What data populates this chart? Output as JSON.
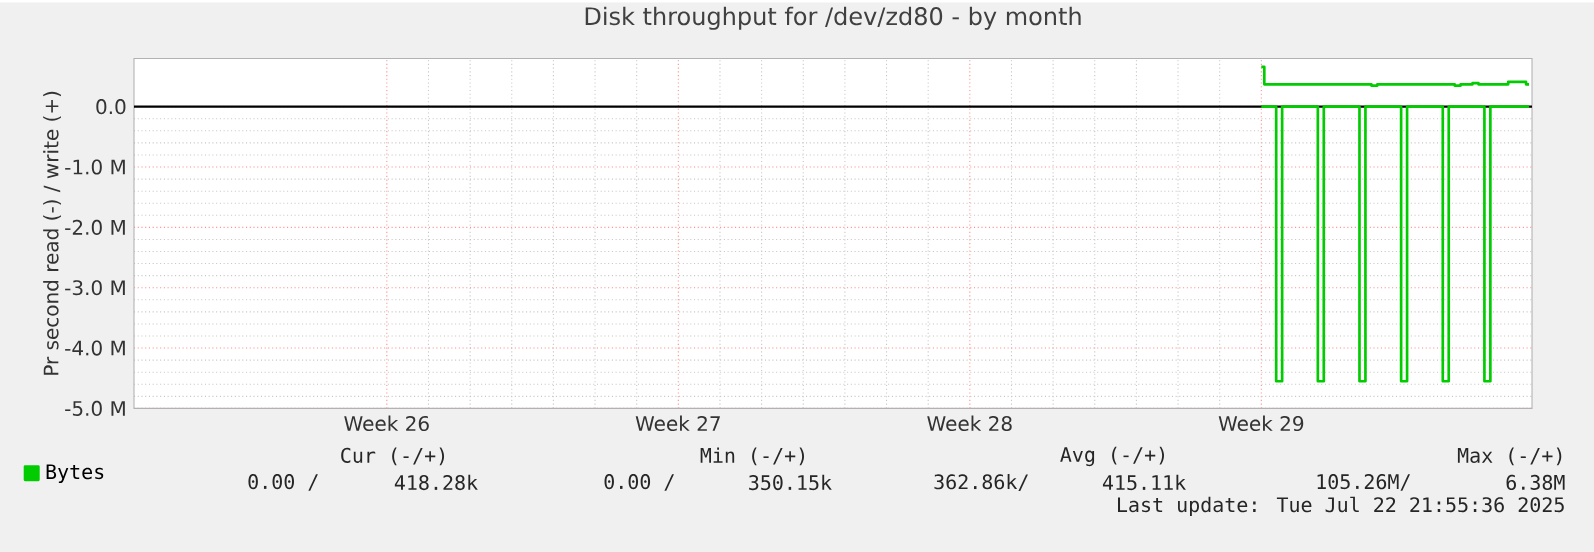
{
  "chart_data": {
    "type": "step",
    "title": "Disk throughput for /dev/zd80 - by month",
    "ylabel": "Pr second read (-) / write (+)",
    "categories": [
      null,
      null,
      null,
      null,
      null,
      null,
      null,
      null,
      null,
      null,
      null,
      null,
      null,
      null,
      null,
      null,
      null,
      null,
      null,
      null,
      null,
      null,
      null,
      null,
      null,
      null,
      null,
      null,
      null,
      null,
      null,
      null,
      null,
      null,
      null,
      null,
      null,
      null,
      null,
      null,
      null,
      null,
      "Week 26",
      null,
      null,
      null,
      null,
      null,
      null,
      null,
      null,
      null,
      null,
      null,
      null,
      null,
      null,
      null,
      null,
      null,
      null,
      null,
      null,
      null,
      null,
      null,
      null,
      null,
      null,
      null,
      null,
      null,
      null,
      null,
      null,
      null,
      null,
      null,
      null,
      null,
      null,
      null,
      null,
      null,
      null,
      null,
      null,
      null,
      null,
      null,
      null,
      "Week 27",
      null,
      null,
      null,
      null,
      null,
      null,
      null,
      null,
      null,
      null,
      null,
      null,
      null,
      null,
      null,
      null,
      null,
      null,
      null,
      null,
      null,
      null,
      null,
      null,
      null,
      null,
      null,
      null,
      null,
      null,
      null,
      null,
      null,
      null,
      null,
      null,
      null,
      null,
      null,
      null,
      null,
      null,
      null,
      null,
      null,
      null,
      null,
      null,
      "Week 28",
      null,
      null,
      null,
      null,
      null,
      null,
      null,
      null,
      null,
      null,
      null,
      null,
      null,
      null,
      null,
      null,
      null,
      null,
      null,
      null,
      null,
      null,
      null,
      null,
      null,
      null,
      null,
      null,
      null,
      null,
      null,
      null,
      null,
      null,
      null,
      null,
      null,
      null,
      null,
      null,
      null,
      null,
      null,
      null,
      null,
      null,
      null,
      null,
      "Week 29",
      null,
      null,
      null,
      null,
      null,
      null,
      null,
      null,
      null,
      null,
      null,
      null,
      null,
      null,
      null,
      null,
      null,
      null,
      null,
      null,
      null,
      null,
      null,
      null,
      null,
      null,
      null,
      null,
      null,
      null,
      null,
      null,
      null,
      null,
      null,
      null,
      null,
      null,
      null,
      null,
      null,
      null,
      null,
      null,
      null
    ],
    "ylim": [
      -5,
      0.8
    ],
    "yticks": [
      {
        "value": -5,
        "label": "-5.0 M"
      },
      {
        "value": -4,
        "label": "-4.0 M"
      },
      {
        "value": -3,
        "label": "-3.0 M"
      },
      {
        "value": -2,
        "label": "-2.0 M"
      },
      {
        "value": -1,
        "label": "-1.0 M"
      },
      {
        "value": 0,
        "label": "0.0"
      }
    ],
    "grid": true,
    "legend": "bottom left",
    "series": [
      {
        "name": "Bytes",
        "color": "#00cc00",
        "values": [
          null,
          null,
          null,
          null,
          null,
          null,
          null,
          null,
          null,
          null,
          null,
          null,
          null,
          null,
          null,
          null,
          null,
          null,
          null,
          null,
          null,
          null,
          null,
          null,
          null,
          null,
          null,
          null,
          null,
          null,
          null,
          null,
          null,
          null,
          null,
          null,
          null,
          null,
          null,
          null,
          null,
          null,
          null,
          null,
          null,
          null,
          null,
          null,
          null,
          null,
          null,
          null,
          null,
          null,
          null,
          null,
          null,
          null,
          null,
          null,
          null,
          null,
          null,
          null,
          null,
          null,
          null,
          null,
          null,
          null,
          null,
          null,
          null,
          null,
          null,
          null,
          null,
          null,
          null,
          null,
          null,
          null,
          null,
          null,
          null,
          null,
          null,
          null,
          null,
          null,
          null,
          null,
          null,
          null,
          null,
          null,
          null,
          null,
          null,
          null,
          null,
          null,
          null,
          null,
          null,
          null,
          null,
          null,
          null,
          null,
          null,
          null,
          null,
          null,
          null,
          null,
          null,
          null,
          null,
          null,
          null,
          null,
          null,
          null,
          null,
          null,
          null,
          null,
          null,
          null,
          null,
          null,
          null,
          null,
          null,
          null,
          null,
          null,
          null,
          null,
          null,
          null,
          null,
          null,
          null,
          null,
          null,
          null,
          null,
          null,
          null,
          null,
          null,
          null,
          null,
          null,
          null,
          null,
          null,
          null,
          null,
          null,
          null,
          null,
          null,
          null,
          null,
          null,
          null,
          null,
          null,
          null,
          null,
          null,
          null,
          null,
          null,
          null,
          null,
          null,
          null,
          null,
          null,
          null,
          null,
          null,
          null,
          null,
          null,
          0.66,
          0.37,
          0.37,
          0.37,
          0.37,
          0.37,
          0.37,
          0.37,
          0.37,
          0.37,
          0.37,
          0.37,
          0.37,
          0.37,
          0.37,
          0.37,
          0.37,
          0.37,
          0.37,
          0.35,
          0.37,
          0.37,
          0.37,
          0.37,
          0.37,
          0.37,
          0.37,
          0.37,
          0.37,
          0.37,
          0.37,
          0.37,
          0.37,
          0.35,
          0.37,
          0.37,
          0.39,
          0.37,
          0.37,
          0.37,
          0.37,
          0.37,
          0.41,
          0.41,
          0.41,
          0.37
        ]
      },
      {
        "color": "#00cc00",
        "values": [
          null,
          null,
          null,
          null,
          null,
          null,
          null,
          null,
          null,
          null,
          null,
          null,
          null,
          null,
          null,
          null,
          null,
          null,
          null,
          null,
          null,
          null,
          null,
          null,
          null,
          null,
          null,
          null,
          null,
          null,
          null,
          null,
          null,
          null,
          null,
          null,
          null,
          null,
          null,
          null,
          null,
          null,
          null,
          null,
          null,
          null,
          null,
          null,
          null,
          null,
          null,
          null,
          null,
          null,
          null,
          null,
          null,
          null,
          null,
          null,
          null,
          null,
          null,
          null,
          null,
          null,
          null,
          null,
          null,
          null,
          null,
          null,
          null,
          null,
          null,
          null,
          null,
          null,
          null,
          null,
          null,
          null,
          null,
          null,
          null,
          null,
          null,
          null,
          null,
          null,
          null,
          null,
          null,
          null,
          null,
          null,
          null,
          null,
          null,
          null,
          null,
          null,
          null,
          null,
          null,
          null,
          null,
          null,
          null,
          null,
          null,
          null,
          null,
          null,
          null,
          null,
          null,
          null,
          null,
          null,
          null,
          null,
          null,
          null,
          null,
          null,
          null,
          null,
          null,
          null,
          null,
          null,
          null,
          null,
          null,
          null,
          null,
          null,
          null,
          null,
          null,
          null,
          null,
          null,
          null,
          null,
          null,
          null,
          null,
          null,
          null,
          null,
          null,
          null,
          null,
          null,
          null,
          null,
          null,
          null,
          null,
          null,
          null,
          null,
          null,
          null,
          null,
          null,
          null,
          null,
          null,
          null,
          null,
          null,
          null,
          null,
          null,
          null,
          null,
          null,
          null,
          null,
          null,
          null,
          null,
          null,
          null,
          null,
          null,
          0,
          0,
          0,
          -4.55,
          0,
          0,
          0,
          0,
          0,
          0,
          -4.55,
          0,
          0,
          0,
          0,
          0,
          0,
          -4.55,
          0,
          0,
          0,
          0,
          0,
          0,
          -4.55,
          0,
          0,
          0,
          0,
          0,
          0,
          -4.55,
          0,
          0,
          0,
          0,
          0,
          0,
          -4.55,
          0,
          0,
          0,
          0,
          0,
          0,
          0
        ]
      }
    ],
    "ref_lines": [
      {
        "axis": "y",
        "value": 0,
        "color": "#000000"
      }
    ],
    "annotations": [
      "Cur (-/+)",
      "Min (-/+)",
      "Avg (-/+)",
      "Max (-/+)",
      "0.00 /",
      "418.28k",
      "0.00 /",
      "350.15k",
      "362.86k/",
      "415.11k",
      "105.26M/",
      "6.38M",
      "Last update: Tue Jul 22 21:55:36 2025"
    ]
  }
}
